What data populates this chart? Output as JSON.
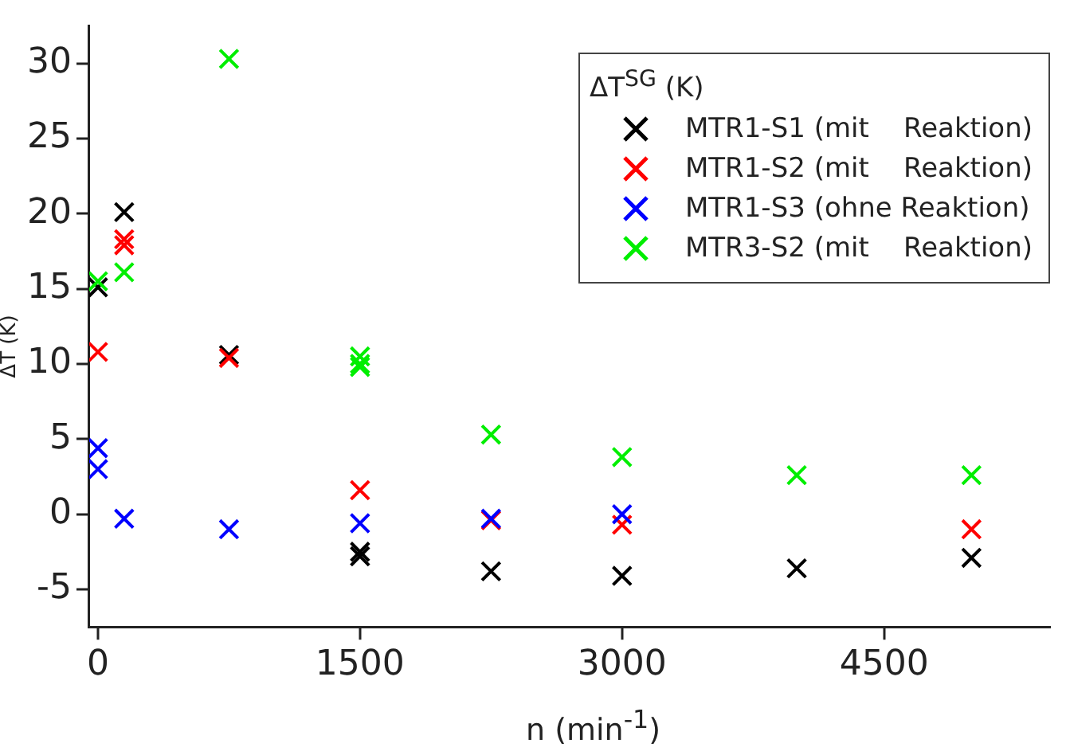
{
  "chart_data": {
    "type": "scatter",
    "xlabel": "n (min$^{-1}$)",
    "ylabel": "ΔT (K)",
    "legend_title": "ΔT$^{SG}$ (K)",
    "xlim": [
      -50,
      5450
    ],
    "xticks": [
      0,
      1500,
      3000,
      4500
    ],
    "ylim": [
      -7.5,
      32.5
    ],
    "yticks": [
      -5,
      0,
      5,
      10,
      15,
      20,
      25,
      30
    ],
    "marker": "cross",
    "grid": false,
    "legend": "top right",
    "series": [
      {
        "name": "MTR1-S1 (mit    Reaktion)",
        "color": "#000000",
        "x": [
          0,
          150,
          750,
          1500,
          1500,
          2250,
          3000,
          4000,
          5000
        ],
        "values": [
          15.1,
          20.1,
          10.6,
          -2.5,
          -2.8,
          -3.8,
          -4.1,
          -3.6,
          -2.9
        ]
      },
      {
        "name": "MTR1-S2 (mit    Reaktion)",
        "color": "#ff0000",
        "x": [
          0,
          150,
          150,
          750,
          1500,
          2250,
          3000,
          5000
        ],
        "values": [
          10.8,
          18.3,
          17.9,
          10.4,
          1.6,
          -0.4,
          -0.7,
          -1.0
        ]
      },
      {
        "name": "MTR1-S3 (ohne Reaktion)",
        "color": "#0000ff",
        "x": [
          0,
          0,
          150,
          750,
          1500,
          2250,
          3000
        ],
        "values": [
          4.4,
          3.0,
          -0.3,
          -1.0,
          -0.6,
          -0.3,
          0.0
        ]
      },
      {
        "name": "MTR3-S2 (mit    Reaktion)",
        "color": "#00ee00",
        "x": [
          0,
          150,
          750,
          1500,
          1500,
          1500,
          2250,
          3000,
          4000,
          5000
        ],
        "values": [
          15.5,
          16.1,
          30.3,
          10.5,
          10.0,
          9.8,
          5.3,
          3.8,
          2.6,
          2.6
        ]
      }
    ]
  }
}
